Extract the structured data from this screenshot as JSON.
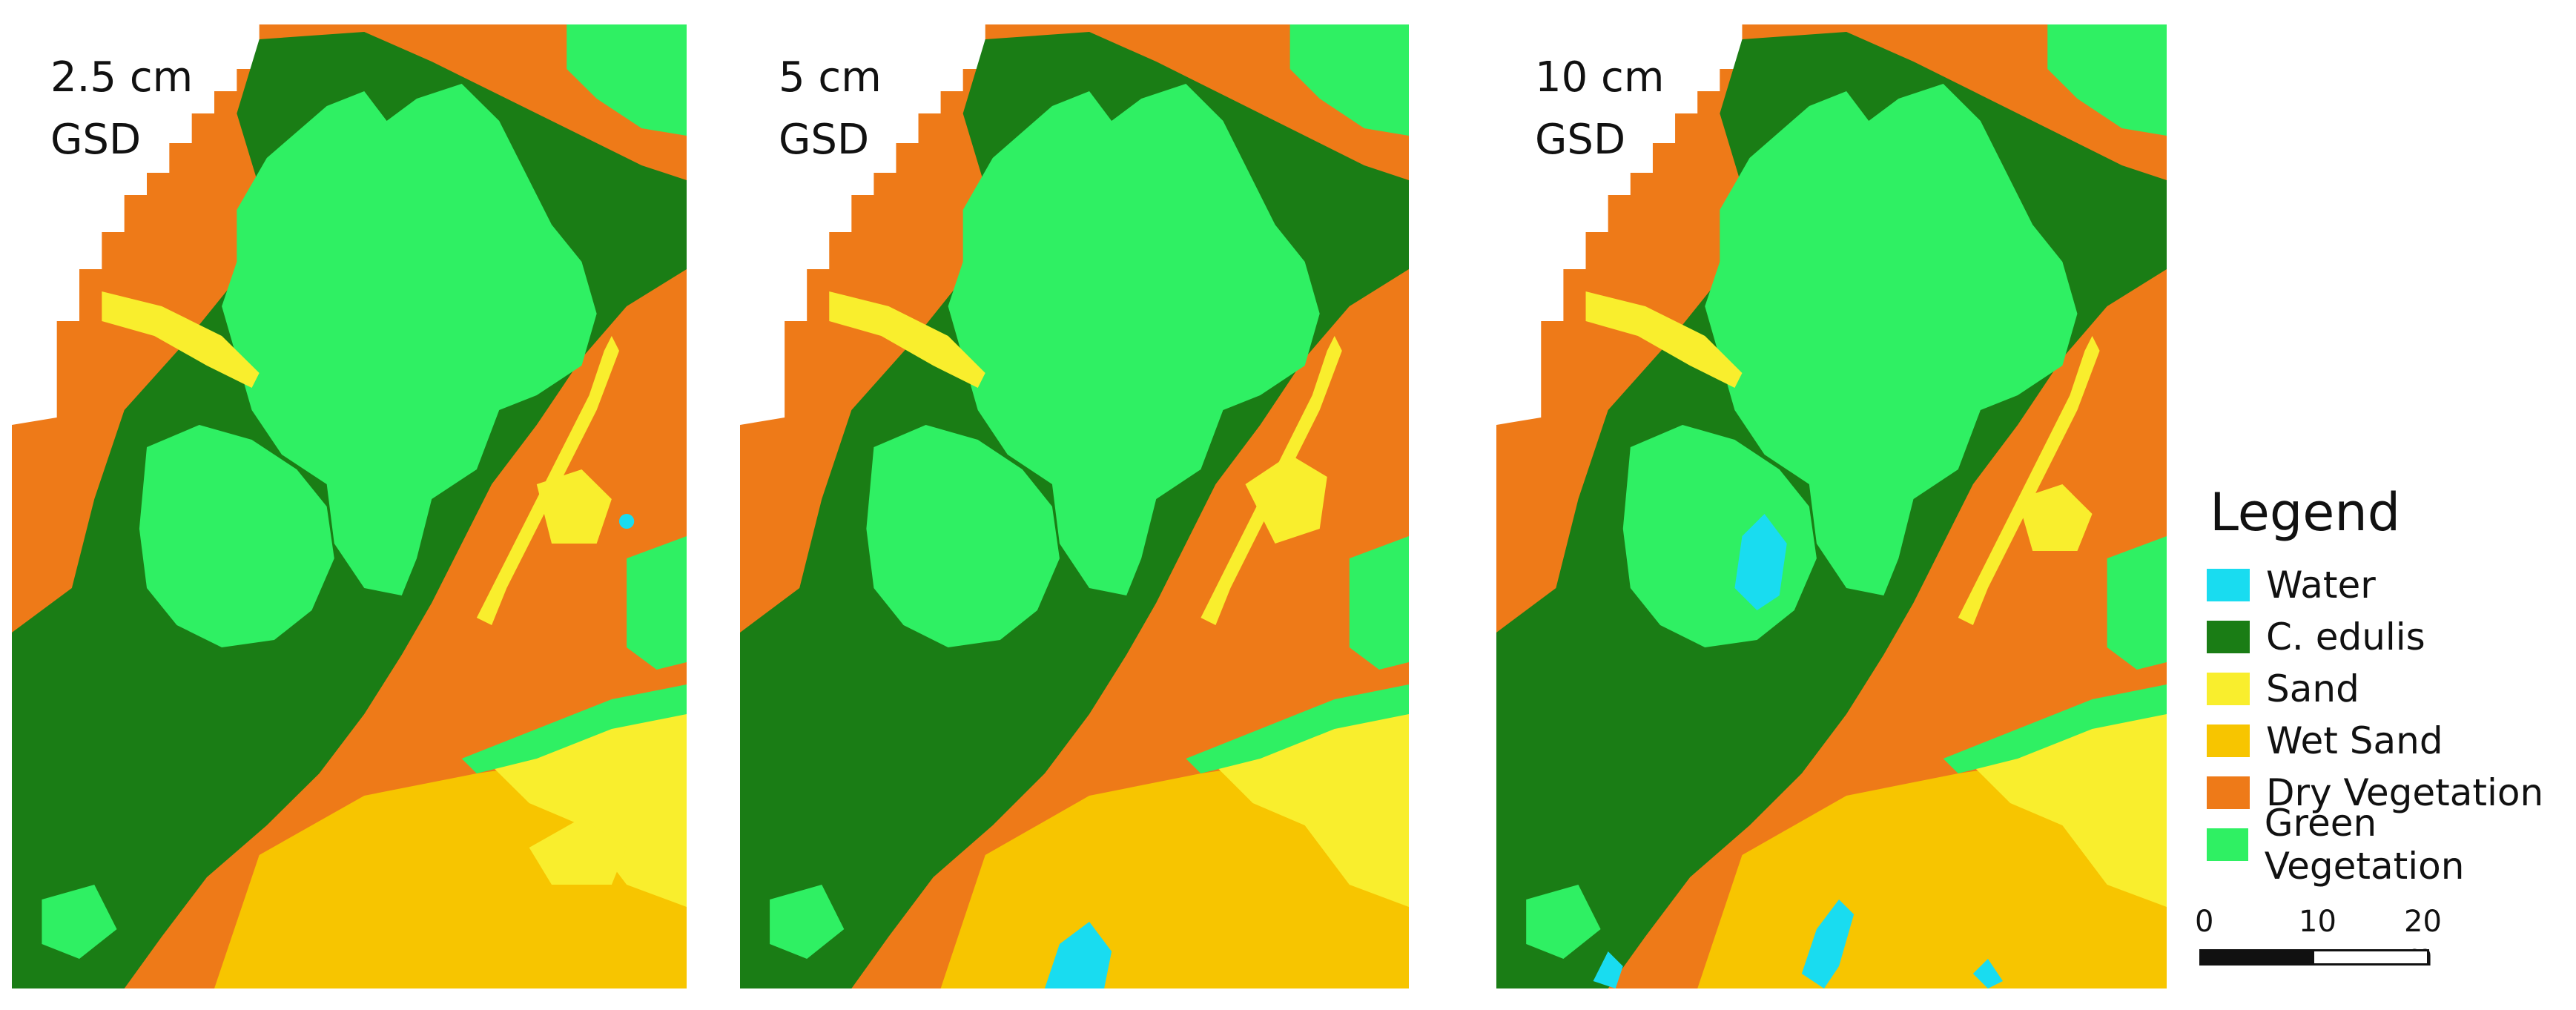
{
  "colors": {
    "water": "#19dcf0",
    "c_edulis": "#1a7d15",
    "sand": "#f9ee2d",
    "wet_sand": "#f7c500",
    "dry_vegetation": "#ee7a18",
    "green_vegetation": "#2ff063"
  },
  "panels": [
    {
      "label": "2.5 cm\nGSD"
    },
    {
      "label": "5 cm\nGSD"
    },
    {
      "label": "10 cm\nGSD"
    }
  ],
  "legend": {
    "title": "Legend",
    "items": [
      {
        "label": "Water",
        "color": "#19dcf0"
      },
      {
        "label": "C. edulis",
        "color": "#1a7d15"
      },
      {
        "label": "Sand",
        "color": "#f9ee2d"
      },
      {
        "label": "Wet Sand",
        "color": "#f7c500"
      },
      {
        "label": "Dry Vegetation",
        "color": "#ee7a18"
      },
      {
        "label": "Green Vegetation",
        "color": "#2ff063"
      }
    ]
  },
  "scalebar": {
    "ticks": [
      "0",
      "10",
      "20 m"
    ]
  }
}
